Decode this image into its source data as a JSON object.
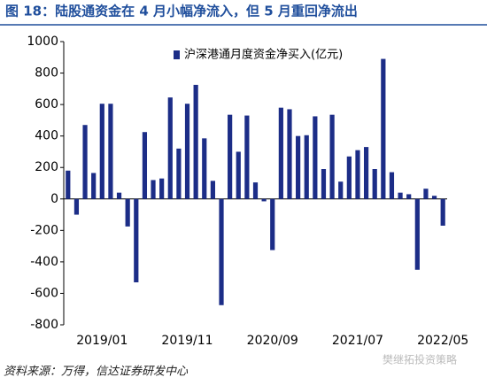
{
  "chart_data": {
    "type": "bar",
    "title": "图 18：陆股通资金在 4 月小幅净流入，但 5 月重回净流出",
    "source": "资料来源：万得，信达证券研发中心",
    "watermark": "樊继拓投资策略",
    "series": [
      {
        "name": "沪深港通月度资金净买入(亿元)",
        "color": "#1c2d87",
        "values": [
          180,
          -100,
          470,
          165,
          605,
          605,
          40,
          -175,
          -530,
          425,
          120,
          130,
          645,
          320,
          605,
          725,
          385,
          115,
          -675,
          535,
          300,
          530,
          105,
          -15,
          -325,
          580,
          570,
          400,
          405,
          525,
          190,
          535,
          110,
          270,
          310,
          330,
          190,
          890,
          170,
          40,
          30,
          -450,
          65,
          20,
          -170
        ]
      }
    ],
    "categories": [
      null,
      null,
      null,
      null,
      "2019/01",
      null,
      null,
      null,
      null,
      null,
      null,
      null,
      null,
      null,
      "2019/11",
      null,
      null,
      null,
      null,
      null,
      null,
      null,
      null,
      null,
      "2020/09",
      null,
      null,
      null,
      null,
      null,
      null,
      null,
      null,
      null,
      "2021/07",
      null,
      null,
      null,
      null,
      null,
      null,
      null,
      null,
      null,
      "2022/05"
    ],
    "ylim": [
      -800,
      1000
    ],
    "yticks": [
      -800,
      -600,
      -400,
      -200,
      0,
      200,
      400,
      600,
      800,
      1000
    ],
    "grid": false,
    "legend": "top"
  }
}
